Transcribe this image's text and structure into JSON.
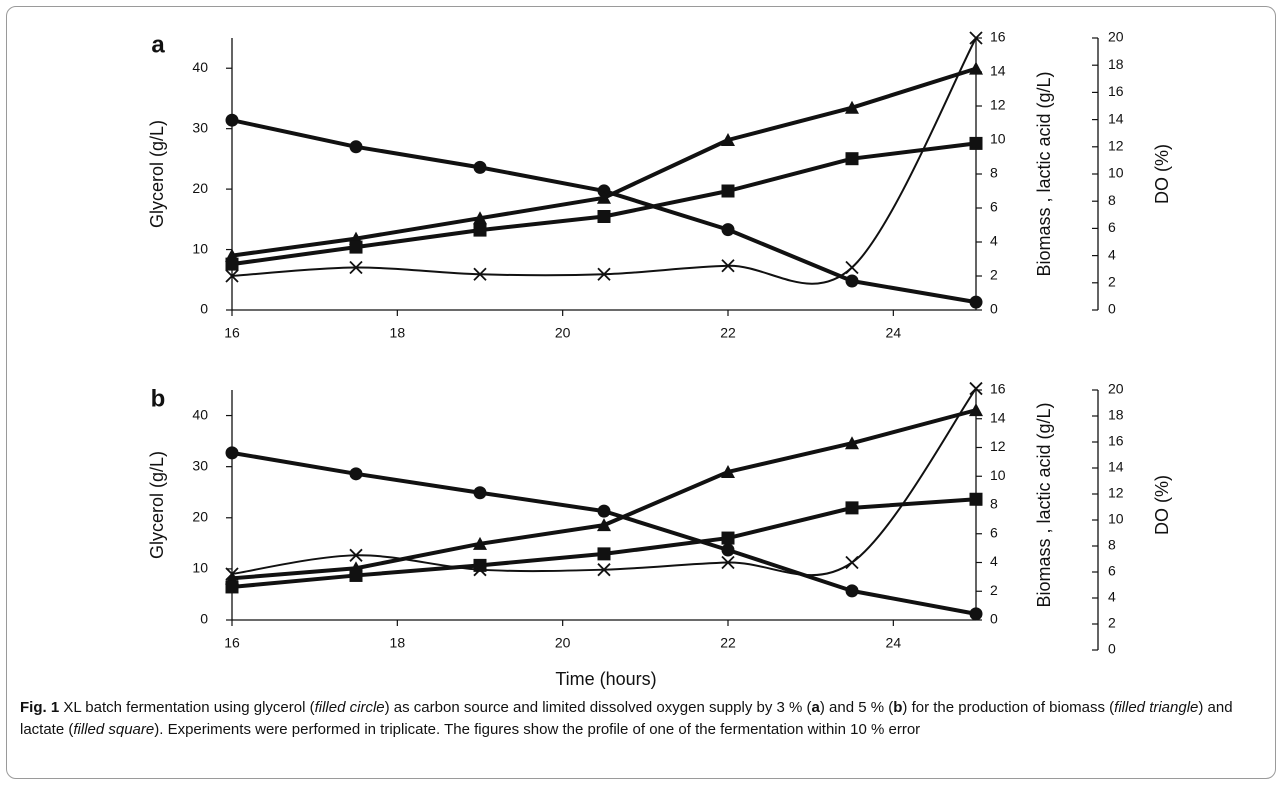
{
  "chart_data": [
    {
      "panel": "a",
      "type": "line",
      "x": [
        16,
        17.5,
        19,
        20.5,
        22,
        23.5,
        25
      ],
      "xlim": [
        16,
        25
      ],
      "xticks": [
        "16",
        "18",
        "20",
        "22",
        "24"
      ],
      "ylabel_left": "Glycerol (g/L)",
      "ylabel_right1": "Biomass , lactic acid (g/L)",
      "ylabel_right2": "DO (%)",
      "ylim_left": [
        0,
        45
      ],
      "ylim_right1": [
        0,
        16
      ],
      "ylim_right2": [
        0,
        20
      ],
      "yticks_left": [
        "0",
        "10",
        "20",
        "30",
        "40"
      ],
      "yticks_right1": [
        "0",
        "2",
        "4",
        "6",
        "8",
        "10",
        "12",
        "14",
        "16"
      ],
      "yticks_right2": [
        "0",
        "2",
        "4",
        "6",
        "8",
        "10",
        "12",
        "14",
        "16",
        "18",
        "20"
      ],
      "series": [
        {
          "marker": "circle",
          "axis": "left",
          "values": [
            31.4,
            27.0,
            23.6,
            19.7,
            13.3,
            4.8,
            1.3
          ]
        },
        {
          "marker": "triangle",
          "axis": "right1",
          "values": [
            3.2,
            4.2,
            5.4,
            6.6,
            10.0,
            11.9,
            14.2
          ]
        },
        {
          "marker": "square",
          "axis": "right1",
          "values": [
            2.7,
            3.7,
            4.7,
            5.5,
            7.0,
            8.9,
            9.8
          ]
        },
        {
          "marker": "x",
          "axis": "right1",
          "values": [
            2.0,
            2.5,
            2.1,
            2.1,
            2.6,
            2.5,
            16.0
          ]
        }
      ]
    },
    {
      "panel": "b",
      "type": "line",
      "x": [
        16,
        17.5,
        19,
        20.5,
        22,
        23.5,
        25
      ],
      "xlim": [
        16,
        25
      ],
      "xticks": [
        "16",
        "18",
        "20",
        "22",
        "24"
      ],
      "xlabel": "Time (hours)",
      "ylabel_left": "Glycerol (g/L)",
      "ylabel_right1": "Biomass , lactic acid (g/L)",
      "ylabel_right2": "DO (%)",
      "ylim_left": [
        0,
        45
      ],
      "ylim_right1": [
        0,
        16
      ],
      "ylim_right2": [
        0,
        20
      ],
      "yticks_left": [
        "0",
        "10",
        "20",
        "30",
        "40"
      ],
      "yticks_right1": [
        "0",
        "2",
        "4",
        "6",
        "8",
        "10",
        "12",
        "14",
        "16"
      ],
      "yticks_right2": [
        "0",
        "2",
        "4",
        "6",
        "8",
        "10",
        "12",
        "14",
        "16",
        "18",
        "20"
      ],
      "series": [
        {
          "marker": "circle",
          "axis": "left",
          "values": [
            32.7,
            28.6,
            24.9,
            21.3,
            13.7,
            5.7,
            1.2
          ]
        },
        {
          "marker": "triangle",
          "axis": "right1",
          "values": [
            2.9,
            3.6,
            5.3,
            6.6,
            10.3,
            12.3,
            14.6
          ]
        },
        {
          "marker": "square",
          "axis": "right1",
          "values": [
            2.3,
            3.1,
            3.8,
            4.6,
            5.7,
            7.8,
            8.4
          ]
        },
        {
          "marker": "x",
          "axis": "right1",
          "values": [
            3.2,
            4.5,
            3.5,
            3.5,
            4.0,
            4.0,
            16.1
          ]
        }
      ]
    }
  ],
  "caption": {
    "fig_label": "Fig. 1",
    "parts": [
      {
        "t": "  XL batch fermentation using glycerol ("
      },
      {
        "t": "filled circle",
        "i": true
      },
      {
        "t": ") as carbon source and limited dissolved oxygen supply by 3 % ("
      },
      {
        "t": "a",
        "b": true
      },
      {
        "t": ") and 5 % ("
      },
      {
        "t": "b",
        "b": true
      },
      {
        "t": ") for the production of biomass ("
      },
      {
        "t": "filled triangle",
        "i": true
      },
      {
        "t": ") and lactate ("
      },
      {
        "t": "filled square",
        "i": true
      },
      {
        "t": "). Experiments were performed in triplicate. The figures show the profile of one of the fermentation within 10 % error"
      }
    ]
  }
}
